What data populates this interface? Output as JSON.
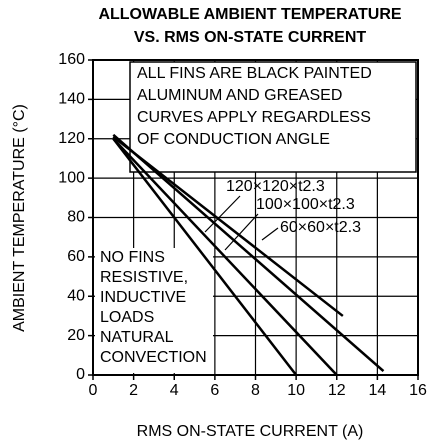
{
  "chart_data": {
    "type": "line",
    "title": [
      "ALLOWABLE AMBIENT TEMPERATURE",
      "VS. RMS ON-STATE CURRENT"
    ],
    "xlabel": "RMS ON-STATE CURRENT  (A)",
    "ylabel": "AMBIENT TEMPERATURE  (°C)",
    "xlim": [
      0,
      16
    ],
    "xticks": [
      0,
      2,
      4,
      6,
      8,
      10,
      12,
      14,
      16
    ],
    "ylim": [
      0,
      160
    ],
    "yticks": [
      0,
      20,
      40,
      60,
      80,
      100,
      120,
      140,
      160
    ],
    "grid": true,
    "series": [
      {
        "name": "120×120×t2.3",
        "color": "#000000",
        "x": [
          1,
          14.3
        ],
        "values": [
          122,
          2
        ]
      },
      {
        "name": "100×100×t2.3",
        "color": "#000000",
        "x": [
          1,
          12.3
        ],
        "values": [
          121,
          30
        ]
      },
      {
        "name": "60×60×t2.3",
        "color": "#000000",
        "x": [
          1,
          12
        ],
        "values": [
          120,
          0
        ]
      },
      {
        "name": "NO FINS",
        "color": "#000000",
        "x": [
          1,
          10
        ],
        "values": [
          120,
          0
        ]
      }
    ],
    "annotations": {
      "note": [
        "ALL FINS ARE BLACK PAINTED",
        "ALUMINUM AND GREASED",
        "CURVES APPLY REGARDLESS",
        "OF CONDUCTION ANGLE"
      ],
      "no_fins_note": [
        "RESISTIVE,",
        "INDUCTIVE",
        "LOADS",
        "NATURAL",
        "CONVECTION"
      ]
    }
  }
}
